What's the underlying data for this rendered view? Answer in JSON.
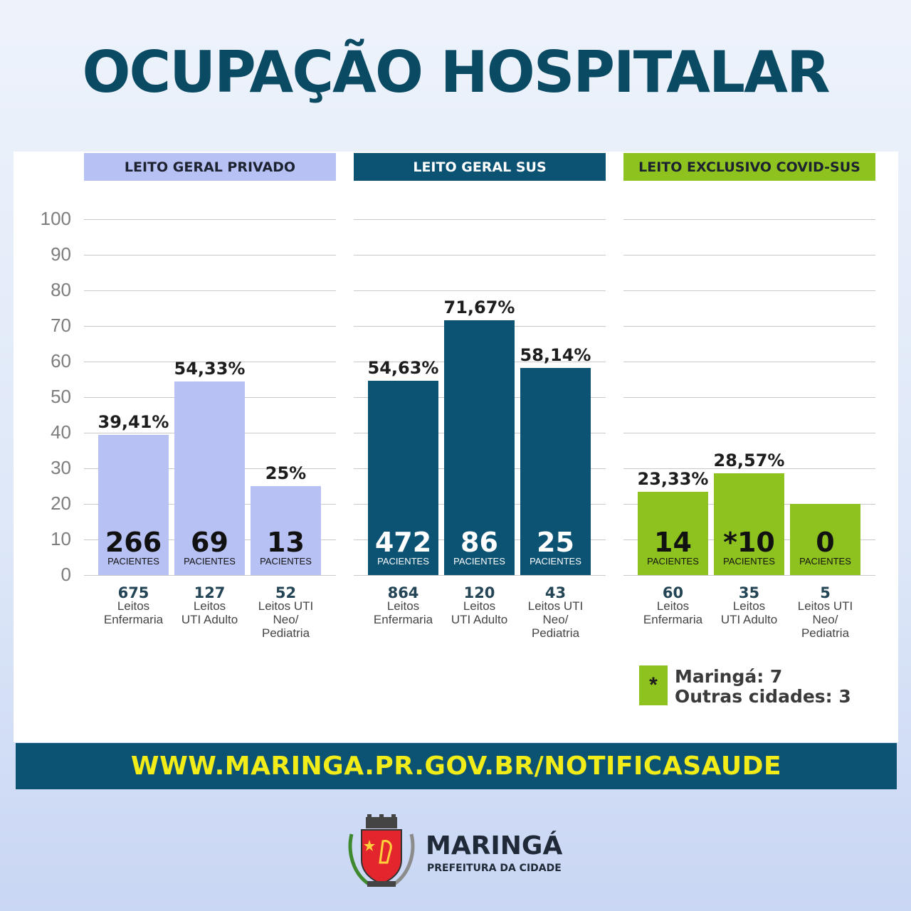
{
  "title": "OCUPAÇÃO HOSPITALAR",
  "footer_url": "WWW.MARINGA.PR.GOV.BR/NOTIFICASAUDE",
  "logo": {
    "name": "MARINGÁ",
    "subtitle": "PREFEITURA DA CIDADE"
  },
  "note": {
    "symbol": "*",
    "line1": "Maringá: 7",
    "line2": "Outras cidades: 3"
  },
  "chart_data": {
    "type": "bar",
    "yaxis": {
      "ylim": [
        0,
        100
      ],
      "ticks": [
        100,
        90,
        80,
        70,
        60,
        50,
        40,
        30,
        20,
        10,
        0
      ]
    },
    "grid": true,
    "unit": "PACIENTES",
    "groups": [
      {
        "name": "LEITO GERAL PRIVADO",
        "color": "#b7c1f3",
        "header_text_color": "#1d2230",
        "count_color": "#111111",
        "bars": [
          {
            "value": 39.41,
            "label": "39,41%",
            "patients": "266",
            "beds": "675",
            "bed_label": [
              "Leitos",
              "Enfermaria"
            ]
          },
          {
            "value": 54.33,
            "label": "54,33%",
            "patients": "69",
            "beds": "127",
            "bed_label": [
              "Leitos",
              "UTI Adulto"
            ]
          },
          {
            "value": 25,
            "label": "25%",
            "patients": "13",
            "beds": "52",
            "bed_label": [
              "Leitos UTI",
              "Neo/",
              "Pediatria"
            ]
          }
        ]
      },
      {
        "name": "LEITO GERAL SUS",
        "color": "#0b5273",
        "header_text_color": "#ffffff",
        "count_color": "#ffffff",
        "bars": [
          {
            "value": 54.63,
            "label": "54,63%",
            "patients": "472",
            "beds": "864",
            "bed_label": [
              "Leitos",
              "Enfermaria"
            ]
          },
          {
            "value": 71.67,
            "label": "71,67%",
            "patients": "86",
            "beds": "120",
            "bed_label": [
              "Leitos",
              "UTI Adulto"
            ]
          },
          {
            "value": 58.14,
            "label": "58,14%",
            "patients": "25",
            "beds": "43",
            "bed_label": [
              "Leitos UTI",
              "Neo/",
              "Pediatria"
            ]
          }
        ]
      },
      {
        "name": "LEITO EXCLUSIVO COVID-SUS",
        "color": "#8ec21f",
        "header_text_color": "#1d2230",
        "count_color": "#111111",
        "bars": [
          {
            "value": 23.33,
            "label": "23,33%",
            "patients": "14",
            "beds": "60",
            "bed_label": [
              "Leitos",
              "Enfermaria"
            ]
          },
          {
            "value": 28.57,
            "label": "28,57%",
            "patients": "*10",
            "beds": "35",
            "bed_label": [
              "Leitos",
              "UTI Adulto"
            ]
          },
          {
            "value": 0,
            "label": "",
            "patients": "0",
            "beds": "5",
            "bed_label": [
              "Leitos UTI",
              "Neo/",
              "Pediatria"
            ]
          }
        ]
      }
    ]
  }
}
